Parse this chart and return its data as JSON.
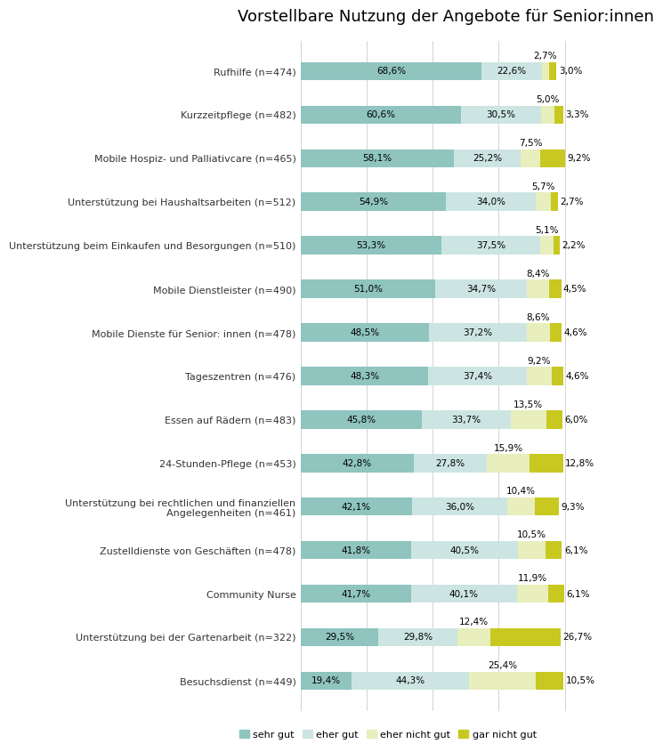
{
  "title": "Vorstellbare Nutzung der Angebote für Senior:innen",
  "categories": [
    "Rufhilfe (n=474)",
    "Kurzzeitpflege (n=482)",
    "Mobile Hospiz- und Palliativcare (n=465)",
    "Unterstützung bei Haushaltsarbeiten (n=512)",
    "Unterstützung beim Einkaufen und Besorgungen (n=510)",
    "Mobile Dienstleister (n=490)",
    "Mobile Dienste für Senior: innen (n=478)",
    "Tageszentren (n=476)",
    "Essen auf Rädern (n=483)",
    "24-Stunden-Pflege (n=453)",
    "Unterstützung bei rechtlichen und finanziellen\nAngelegenheiten (n=461)",
    "Zustelldienste von Geschäften (n=478)",
    "Community Nurse",
    "Unterstützung bei der Gartenarbeit (n=322)",
    "Besuchsdienst (n=449)"
  ],
  "sehr_gut": [
    68.6,
    60.6,
    58.1,
    54.9,
    53.3,
    51.0,
    48.5,
    48.3,
    45.8,
    42.8,
    42.1,
    41.8,
    41.7,
    29.5,
    19.4
  ],
  "eher_gut": [
    22.6,
    30.5,
    25.2,
    34.0,
    37.5,
    34.7,
    37.2,
    37.4,
    33.7,
    27.8,
    36.0,
    40.5,
    40.1,
    29.8,
    44.3
  ],
  "eher_nicht_gut": [
    2.7,
    5.0,
    7.5,
    5.7,
    5.1,
    8.4,
    8.6,
    9.2,
    13.5,
    15.9,
    10.4,
    10.5,
    11.9,
    12.4,
    25.4
  ],
  "gar_nicht_gut": [
    3.0,
    3.3,
    9.2,
    2.7,
    2.2,
    4.5,
    4.6,
    4.6,
    6.0,
    12.8,
    9.3,
    6.1,
    6.1,
    26.7,
    10.5
  ],
  "color_sehr_gut": "#8fc4bf",
  "color_eher_gut": "#cce5e2",
  "color_eher_nicht_gut": "#e8eebc",
  "color_gar_nicht_gut": "#c8c820",
  "legend_labels": [
    "sehr gut",
    "eher gut",
    "eher nicht gut",
    "gar nicht gut"
  ],
  "background_color": "#ffffff",
  "title_fontsize": 13,
  "label_fontsize": 8,
  "bar_label_fontsize": 7.5,
  "bar_height": 0.42
}
